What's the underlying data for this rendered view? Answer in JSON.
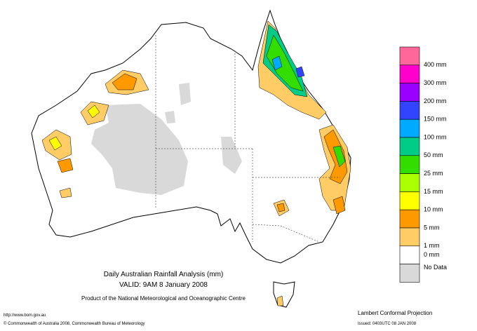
{
  "map": {
    "title": "Daily Australian Rainfall Analysis (mm)",
    "valid": "VALID: 9AM  8 January 2008",
    "product": "Product of the National Meteorological and Oceanographic Centre",
    "url": "http://www.bom.gov.au",
    "copyright": "© Commonwealth of Australia 2008, Commonwealth Bureau of Meteorology",
    "projection": "Lambert Conformal Projection",
    "issued": "Issued: 0403UTC 08 JAN 2008"
  },
  "legend": [
    {
      "color": "#ff6699",
      "label": "400 mm"
    },
    {
      "color": "#ff00cc",
      "label": "300 mm"
    },
    {
      "color": "#9900ff",
      "label": "200 mm"
    },
    {
      "color": "#3344ff",
      "label": "150 mm"
    },
    {
      "color": "#00aaff",
      "label": "100 mm"
    },
    {
      "color": "#00cc88",
      "label": "50 mm"
    },
    {
      "color": "#33dd00",
      "label": "25 mm"
    },
    {
      "color": "#aaff00",
      "label": "15 mm"
    },
    {
      "color": "#ffff00",
      "label": "10 mm"
    },
    {
      "color": "#ff9900",
      "label": "5 mm"
    },
    {
      "color": "#ffcc66",
      "label": "1 mm"
    },
    {
      "color": "#ffffff",
      "label": "0 mm"
    },
    {
      "color": "#d9d9d9",
      "label": "No Data"
    }
  ]
}
